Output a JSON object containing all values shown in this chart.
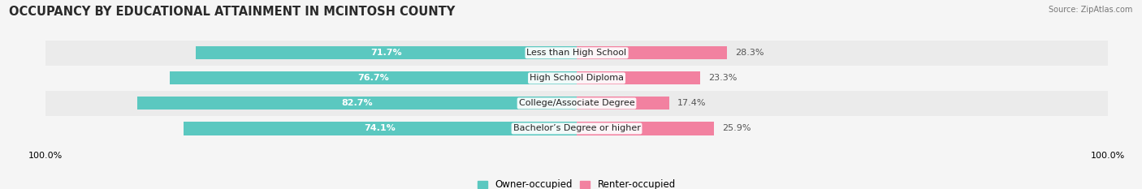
{
  "title": "OCCUPANCY BY EDUCATIONAL ATTAINMENT IN MCINTOSH COUNTY",
  "source": "Source: ZipAtlas.com",
  "categories": [
    "Less than High School",
    "High School Diploma",
    "College/Associate Degree",
    "Bachelor’s Degree or higher"
  ],
  "owner_values": [
    71.7,
    76.7,
    82.7,
    74.1
  ],
  "renter_values": [
    28.3,
    23.3,
    17.4,
    25.9
  ],
  "owner_color": "#5BC8C0",
  "renter_color": "#F281A0",
  "owner_label": "Owner-occupied",
  "renter_label": "Renter-occupied",
  "bar_height": 0.52,
  "title_fontsize": 10.5,
  "label_fontsize": 8,
  "value_fontsize": 8,
  "source_fontsize": 7,
  "axis_tick_fontsize": 8,
  "legend_fontsize": 8.5,
  "row_colors": [
    "#ebebeb",
    "#f5f5f5"
  ],
  "bg_color": "#f5f5f5"
}
